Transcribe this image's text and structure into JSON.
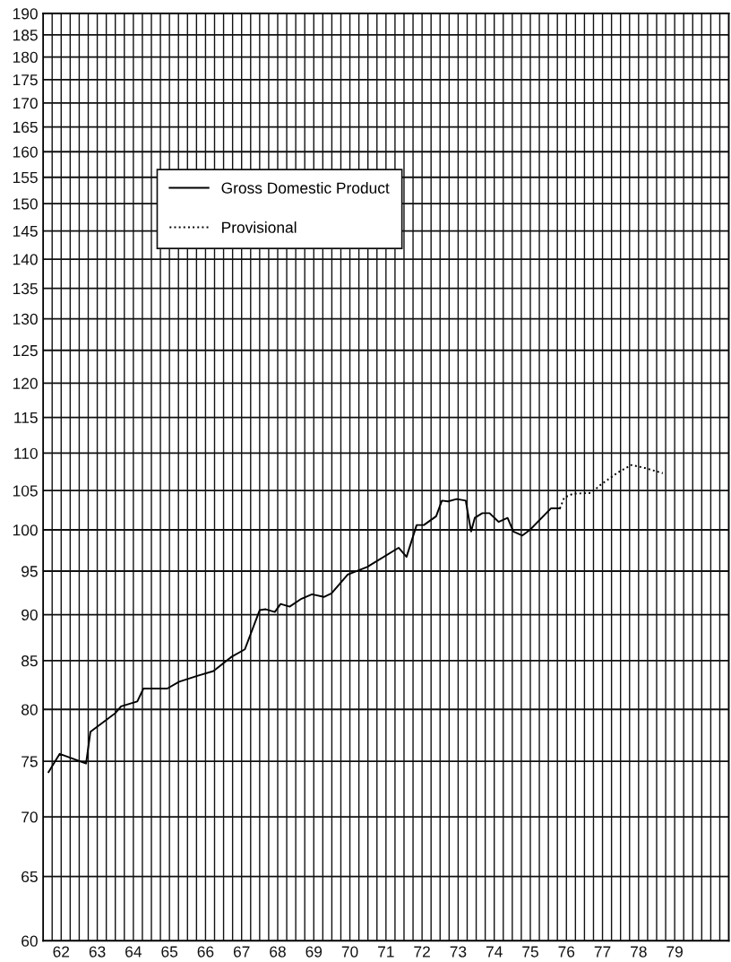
{
  "chart_data": {
    "type": "line",
    "log": "y",
    "grid": true,
    "legend": "top left",
    "xlim": [
      62,
      81
    ],
    "ylim": [
      60,
      190
    ],
    "yticks": [
      60,
      65,
      70,
      75,
      80,
      85,
      90,
      95,
      100,
      105,
      110,
      115,
      120,
      125,
      130,
      135,
      140,
      145,
      150,
      155,
      160,
      165,
      170,
      175,
      180,
      185,
      190
    ],
    "xticks": [
      {
        "value": 62,
        "label": null
      },
      {
        "value": 62.25,
        "label": null
      },
      {
        "value": 62.5,
        "label": "62"
      },
      {
        "value": 62.75,
        "label": null
      },
      {
        "value": 63,
        "label": null
      },
      {
        "value": 63.25,
        "label": null
      },
      {
        "value": 63.5,
        "label": "63"
      },
      {
        "value": 63.75,
        "label": null
      },
      {
        "value": 64,
        "label": null
      },
      {
        "value": 64.25,
        "label": null
      },
      {
        "value": 64.5,
        "label": "64"
      },
      {
        "value": 64.75,
        "label": null
      },
      {
        "value": 65,
        "label": null
      },
      {
        "value": 65.25,
        "label": null
      },
      {
        "value": 65.5,
        "label": "65"
      },
      {
        "value": 65.75,
        "label": null
      },
      {
        "value": 66,
        "label": null
      },
      {
        "value": 66.25,
        "label": null
      },
      {
        "value": 66.5,
        "label": "66"
      },
      {
        "value": 66.75,
        "label": null
      },
      {
        "value": 67,
        "label": null
      },
      {
        "value": 67.25,
        "label": null
      },
      {
        "value": 67.5,
        "label": "67"
      },
      {
        "value": 67.75,
        "label": null
      },
      {
        "value": 68,
        "label": null
      },
      {
        "value": 68.25,
        "label": null
      },
      {
        "value": 68.5,
        "label": "68"
      },
      {
        "value": 68.75,
        "label": null
      },
      {
        "value": 69,
        "label": null
      },
      {
        "value": 69.25,
        "label": null
      },
      {
        "value": 69.5,
        "label": "69"
      },
      {
        "value": 69.75,
        "label": null
      },
      {
        "value": 70,
        "label": null
      },
      {
        "value": 70.25,
        "label": null
      },
      {
        "value": 70.5,
        "label": "70"
      },
      {
        "value": 70.75,
        "label": null
      },
      {
        "value": 71,
        "label": null
      },
      {
        "value": 71.25,
        "label": null
      },
      {
        "value": 71.5,
        "label": "71"
      },
      {
        "value": 71.75,
        "label": null
      },
      {
        "value": 72,
        "label": null
      },
      {
        "value": 72.25,
        "label": null
      },
      {
        "value": 72.5,
        "label": "72"
      },
      {
        "value": 72.75,
        "label": null
      },
      {
        "value": 73,
        "label": null
      },
      {
        "value": 73.25,
        "label": null
      },
      {
        "value": 73.5,
        "label": "73"
      },
      {
        "value": 73.75,
        "label": null
      },
      {
        "value": 74,
        "label": null
      },
      {
        "value": 74.25,
        "label": null
      },
      {
        "value": 74.5,
        "label": "74"
      },
      {
        "value": 74.75,
        "label": null
      },
      {
        "value": 75,
        "label": null
      },
      {
        "value": 75.25,
        "label": null
      },
      {
        "value": 75.5,
        "label": "75"
      },
      {
        "value": 75.75,
        "label": null
      },
      {
        "value": 76,
        "label": null
      },
      {
        "value": 76.25,
        "label": null
      },
      {
        "value": 76.5,
        "label": "76"
      },
      {
        "value": 76.75,
        "label": null
      },
      {
        "value": 77,
        "label": null
      },
      {
        "value": 77.25,
        "label": null
      },
      {
        "value": 77.5,
        "label": "77"
      },
      {
        "value": 77.75,
        "label": null
      },
      {
        "value": 78,
        "label": null
      },
      {
        "value": 78.25,
        "label": null
      },
      {
        "value": 78.5,
        "label": "78"
      },
      {
        "value": 78.75,
        "label": null
      },
      {
        "value": 79,
        "label": null
      },
      {
        "value": 79.25,
        "label": null
      },
      {
        "value": 79.5,
        "label": "79"
      },
      {
        "value": 79.75,
        "label": null
      },
      {
        "value": 80,
        "label": null
      },
      {
        "value": 80.25,
        "label": null
      },
      {
        "value": 80.5,
        "label": null
      },
      {
        "value": 80.75,
        "label": null
      },
      {
        "value": 81,
        "label": null
      }
    ],
    "series": [
      {
        "name": "Gross Domestic Product",
        "color": "#000000",
        "line_style": "solid",
        "x": [
          62.15,
          62.46,
          63.19,
          63.31,
          63.99,
          64.16,
          64.61,
          64.78,
          65.44,
          65.77,
          66.27,
          66.72,
          67.22,
          67.59,
          68.0,
          68.17,
          68.42,
          68.58,
          68.83,
          69.16,
          69.45,
          69.78,
          69.99,
          70.44,
          70.98,
          71.85,
          72.07,
          72.35,
          72.55,
          72.89,
          73.05,
          73.22,
          73.46,
          73.71,
          73.86,
          73.96,
          74.17,
          74.37,
          74.62,
          74.87,
          75.03,
          75.28,
          75.49,
          76.07,
          76.32
        ],
        "values": [
          74.0,
          75.7,
          74.8,
          77.8,
          79.6,
          80.3,
          80.8,
          82.1,
          82.1,
          82.8,
          83.4,
          83.9,
          85.4,
          86.2,
          90.5,
          90.6,
          90.3,
          91.2,
          90.9,
          91.8,
          92.3,
          92.0,
          92.4,
          94.6,
          95.5,
          97.8,
          96.7,
          100.6,
          100.6,
          101.7,
          103.7,
          103.6,
          103.9,
          103.7,
          99.8,
          101.5,
          102.1,
          102.1,
          101.0,
          101.5,
          99.8,
          99.3,
          100.0,
          102.7,
          102.7
        ]
      },
      {
        "name": "Provisional",
        "color": "#000000",
        "line_style": "dotted",
        "x": [
          76.32,
          76.44,
          76.69,
          77.19,
          77.43,
          77.93,
          78.3,
          78.67,
          79.17
        ],
        "values": [
          102.7,
          104.1,
          104.6,
          104.7,
          105.7,
          107.4,
          108.4,
          108.0,
          107.3
        ]
      }
    ]
  }
}
